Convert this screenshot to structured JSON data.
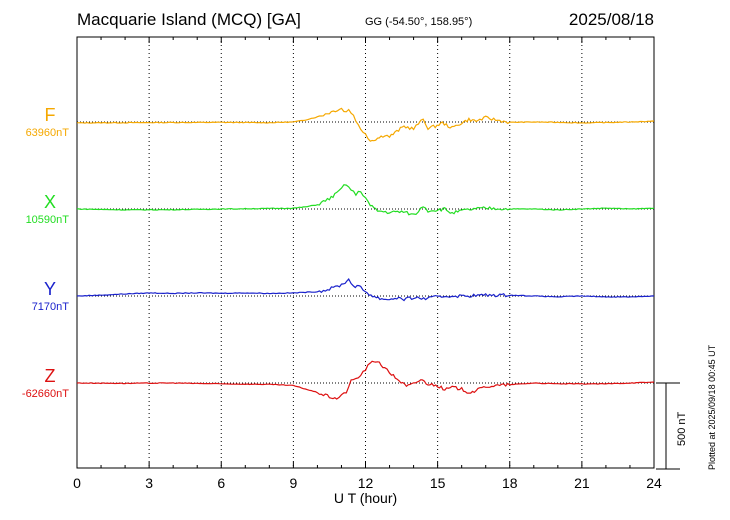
{
  "header": {
    "title": "Macquarie Island (MCQ)  [GA]",
    "coords": "GG (-54.50°, 158.95°)",
    "date": "2025/08/18"
  },
  "footnote": "Plotted at 2025/09/18 00:45 UT",
  "chart_data": {
    "type": "line",
    "xlabel": "U T (hour)",
    "xlim": [
      0,
      24
    ],
    "xticks": [
      0,
      3,
      6,
      9,
      12,
      15,
      18,
      21,
      24
    ],
    "scale_bar": {
      "value": 500,
      "label": "500 nT"
    },
    "series": [
      {
        "name": "F",
        "baseline_label": "63960nT",
        "color": "#f5a800",
        "baseline": 63960,
        "points": [
          [
            0,
            -5
          ],
          [
            2,
            -4
          ],
          [
            4,
            -3
          ],
          [
            6,
            -2
          ],
          [
            8,
            -4
          ],
          [
            9,
            0
          ],
          [
            9.5,
            12
          ],
          [
            10,
            30
          ],
          [
            10.5,
            55
          ],
          [
            11,
            80
          ],
          [
            11.1,
            60
          ],
          [
            11.3,
            70
          ],
          [
            11.5,
            40
          ],
          [
            11.7,
            -20
          ],
          [
            11.8,
            -45
          ],
          [
            12,
            -65
          ],
          [
            12.2,
            -110
          ],
          [
            12.5,
            -95
          ],
          [
            12.8,
            -75
          ],
          [
            13,
            -85
          ],
          [
            13.3,
            -55
          ],
          [
            13.6,
            -25
          ],
          [
            14,
            -40
          ],
          [
            14.2,
            -10
          ],
          [
            14.4,
            15
          ],
          [
            14.6,
            -35
          ],
          [
            14.9,
            -25
          ],
          [
            15.2,
            -5
          ],
          [
            15.6,
            -35
          ],
          [
            16,
            -5
          ],
          [
            16.3,
            15
          ],
          [
            16.6,
            5
          ],
          [
            17,
            25
          ],
          [
            17.5,
            10
          ],
          [
            18,
            -2
          ],
          [
            19,
            0
          ],
          [
            20,
            -2
          ],
          [
            21,
            -5
          ],
          [
            22,
            -3
          ],
          [
            23,
            0
          ],
          [
            24,
            5
          ]
        ]
      },
      {
        "name": "X",
        "baseline_label": "10590nT",
        "color": "#22dd22",
        "baseline": 10590,
        "points": [
          [
            0,
            0
          ],
          [
            2,
            -5
          ],
          [
            4,
            -4
          ],
          [
            6,
            0
          ],
          [
            8,
            3
          ],
          [
            9,
            5
          ],
          [
            9.5,
            12
          ],
          [
            10,
            25
          ],
          [
            10.5,
            60
          ],
          [
            10.8,
            90
          ],
          [
            11,
            120
          ],
          [
            11.2,
            145
          ],
          [
            11.4,
            110
          ],
          [
            11.6,
            85
          ],
          [
            11.8,
            105
          ],
          [
            12,
            65
          ],
          [
            12.2,
            20
          ],
          [
            12.5,
            -10
          ],
          [
            13,
            -20
          ],
          [
            13.5,
            -15
          ],
          [
            13.8,
            -25
          ],
          [
            14,
            -35
          ],
          [
            14.2,
            -15
          ],
          [
            14.4,
            20
          ],
          [
            14.6,
            -10
          ],
          [
            15,
            -5
          ],
          [
            15.3,
            0
          ],
          [
            15.6,
            -25
          ],
          [
            16,
            -10
          ],
          [
            16.5,
            0
          ],
          [
            17,
            5
          ],
          [
            18,
            0
          ],
          [
            19,
            0
          ],
          [
            20,
            -5
          ],
          [
            21,
            0
          ],
          [
            22,
            5
          ],
          [
            23,
            0
          ],
          [
            24,
            5
          ]
        ]
      },
      {
        "name": "Y",
        "baseline_label": "7170nT",
        "color": "#1a22cc",
        "baseline": 7170,
        "points": [
          [
            0,
            0
          ],
          [
            1,
            5
          ],
          [
            2,
            12
          ],
          [
            3,
            18
          ],
          [
            4,
            15
          ],
          [
            5,
            18
          ],
          [
            6,
            16
          ],
          [
            7,
            18
          ],
          [
            8,
            15
          ],
          [
            9,
            18
          ],
          [
            10,
            25
          ],
          [
            10.5,
            40
          ],
          [
            11,
            65
          ],
          [
            11.3,
            95
          ],
          [
            11.5,
            60
          ],
          [
            11.8,
            50
          ],
          [
            12,
            25
          ],
          [
            12.3,
            0
          ],
          [
            12.6,
            -15
          ],
          [
            13,
            -20
          ],
          [
            13.3,
            -10
          ],
          [
            13.6,
            -20
          ],
          [
            14,
            -10
          ],
          [
            14.5,
            -15
          ],
          [
            15,
            -5
          ],
          [
            15.5,
            0
          ],
          [
            16,
            0
          ],
          [
            17,
            5
          ],
          [
            18,
            5
          ],
          [
            19,
            0
          ],
          [
            20,
            -5
          ],
          [
            21,
            0
          ],
          [
            22,
            -5
          ],
          [
            23,
            -5
          ],
          [
            24,
            0
          ]
        ]
      },
      {
        "name": "Z",
        "baseline_label": "-62660nT",
        "color": "#dd1111",
        "baseline": -62660,
        "points": [
          [
            0,
            0
          ],
          [
            2,
            -2
          ],
          [
            4,
            0
          ],
          [
            6,
            -5
          ],
          [
            8,
            -8
          ],
          [
            9,
            -15
          ],
          [
            9.5,
            -35
          ],
          [
            10,
            -55
          ],
          [
            10.5,
            -80
          ],
          [
            10.8,
            -90
          ],
          [
            11,
            -75
          ],
          [
            11.2,
            -50
          ],
          [
            11.4,
            10
          ],
          [
            11.6,
            25
          ],
          [
            11.8,
            45
          ],
          [
            12,
            80
          ],
          [
            12.2,
            115
          ],
          [
            12.5,
            130
          ],
          [
            12.8,
            85
          ],
          [
            13,
            60
          ],
          [
            13.4,
            15
          ],
          [
            13.7,
            -20
          ],
          [
            14,
            -5
          ],
          [
            14.3,
            20
          ],
          [
            14.6,
            -5
          ],
          [
            15,
            -15
          ],
          [
            15.3,
            -40
          ],
          [
            15.6,
            -25
          ],
          [
            16,
            -35
          ],
          [
            16.3,
            -55
          ],
          [
            16.6,
            -45
          ],
          [
            17,
            -20
          ],
          [
            17.5,
            -15
          ],
          [
            18,
            -10
          ],
          [
            19,
            0
          ],
          [
            20,
            -5
          ],
          [
            21,
            -5
          ],
          [
            22,
            -5
          ],
          [
            23,
            0
          ],
          [
            24,
            5
          ]
        ]
      }
    ]
  }
}
